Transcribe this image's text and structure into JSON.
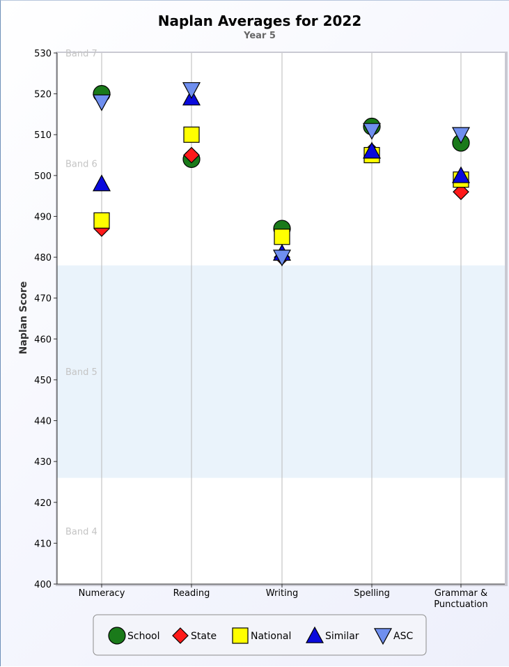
{
  "chart_data": {
    "type": "scatter",
    "title": "Naplan Averages for 2022",
    "subtitle": "Year 5",
    "ylabel": "Naplan Score",
    "ylim": [
      400,
      530
    ],
    "yticks": [
      400,
      410,
      420,
      430,
      440,
      450,
      460,
      470,
      480,
      490,
      500,
      510,
      520,
      530
    ],
    "categories": [
      "Numeracy",
      "Reading",
      "Writing",
      "Spelling",
      "Grammar & Punctuation"
    ],
    "category_lines": [
      [
        "Numeracy"
      ],
      [
        "Reading"
      ],
      [
        "Writing"
      ],
      [
        "Spelling"
      ],
      [
        "Grammar &",
        "Punctuation"
      ]
    ],
    "bands": [
      {
        "label": "Band 7",
        "from": 530,
        "to": 530,
        "shaded": false
      },
      {
        "label": "Band 6",
        "from": 478,
        "to": 530,
        "shaded": false
      },
      {
        "label": "Band 5",
        "from": 426,
        "to": 478,
        "shaded": true
      },
      {
        "label": "Band 4",
        "from": 400,
        "to": 426,
        "shaded": false
      }
    ],
    "band_label_values": {
      "Band 7": 530,
      "Band 6": 503,
      "Band 5": 452,
      "Band 4": 413
    },
    "series": [
      {
        "name": "School",
        "marker": "circle",
        "color": "#1a7a1a",
        "values": [
          520,
          504,
          487,
          512,
          508
        ]
      },
      {
        "name": "State",
        "marker": "diamond",
        "color": "#ff1a1a",
        "values": [
          487,
          505,
          480,
          506,
          496
        ]
      },
      {
        "name": "National",
        "marker": "square",
        "color": "#ffff00",
        "values": [
          489,
          510,
          485,
          505,
          499
        ]
      },
      {
        "name": "Similar",
        "marker": "triangle-up",
        "color": "#0a0adc",
        "values": [
          498,
          519,
          481,
          506,
          500
        ]
      },
      {
        "name": "ASC",
        "marker": "triangle-down",
        "color": "#6f8fef",
        "values": [
          518,
          521,
          480,
          511,
          510
        ]
      }
    ],
    "legend_position": "bottom",
    "grid": {
      "vertical": true,
      "horizontal": false
    }
  }
}
